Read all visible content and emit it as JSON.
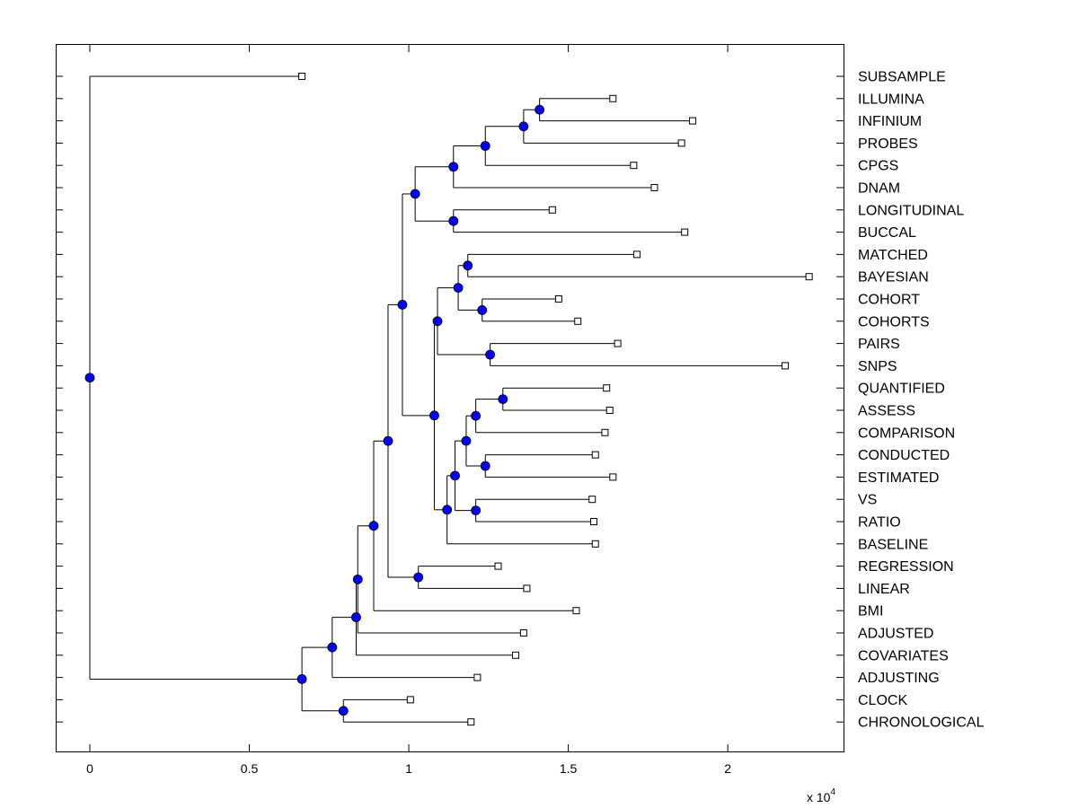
{
  "chart_data": {
    "type": "dendrogram",
    "title": "",
    "xlabel": "",
    "ylabel": "",
    "xlim": [
      -1070,
      23630
    ],
    "x_ticks": [
      {
        "value": 0,
        "label": "0"
      },
      {
        "value": 5000,
        "label": "0.5"
      },
      {
        "value": 10000,
        "label": "1"
      },
      {
        "value": 15000,
        "label": "1.5"
      },
      {
        "value": 20000,
        "label": "2"
      }
    ],
    "x_multiplier": {
      "base": "x 10",
      "exponent": "4"
    },
    "leaves": [
      {
        "label": "SUBSAMPLE",
        "value": 6650
      },
      {
        "label": "ILLUMINA",
        "value": 16400
      },
      {
        "label": "INFINIUM",
        "value": 18900
      },
      {
        "label": "PROBES",
        "value": 18550
      },
      {
        "label": "CPGS",
        "value": 17050
      },
      {
        "label": "DNAM",
        "value": 17700
      },
      {
        "label": "LONGITUDINAL",
        "value": 14500
      },
      {
        "label": "BUCCAL",
        "value": 18650
      },
      {
        "label": "MATCHED",
        "value": 17150
      },
      {
        "label": "BAYESIAN",
        "value": 22550
      },
      {
        "label": "COHORT",
        "value": 14700
      },
      {
        "label": "COHORTS",
        "value": 15300
      },
      {
        "label": "PAIRS",
        "value": 16550
      },
      {
        "label": "SNPS",
        "value": 21800
      },
      {
        "label": "QUANTIFIED",
        "value": 16200
      },
      {
        "label": "ASSESS",
        "value": 16300
      },
      {
        "label": "COMPARISON",
        "value": 16150
      },
      {
        "label": "CONDUCTED",
        "value": 15850
      },
      {
        "label": "ESTIMATED",
        "value": 16400
      },
      {
        "label": "VS",
        "value": 15750
      },
      {
        "label": "RATIO",
        "value": 15800
      },
      {
        "label": "BASELINE",
        "value": 15850
      },
      {
        "label": "REGRESSION",
        "value": 12800
      },
      {
        "label": "LINEAR",
        "value": 13700
      },
      {
        "label": "BMI",
        "value": 15250
      },
      {
        "label": "ADJUSTED",
        "value": 13600
      },
      {
        "label": "COVARIATES",
        "value": 13350
      },
      {
        "label": "ADJUSTING",
        "value": 12150
      },
      {
        "label": "CLOCK",
        "value": 10050
      },
      {
        "label": "CHRONOLOGICAL",
        "value": 11950
      }
    ],
    "nodes": [
      {
        "id": "n1",
        "value": 14100,
        "children": [
          "L1",
          "L2"
        ]
      },
      {
        "id": "n2",
        "value": 13600,
        "children": [
          "n1",
          "L3"
        ]
      },
      {
        "id": "n3",
        "value": 12400,
        "children": [
          "n2",
          "L4"
        ]
      },
      {
        "id": "n4",
        "value": 11400,
        "children": [
          "n3",
          "L5"
        ]
      },
      {
        "id": "n5",
        "value": 11400,
        "children": [
          "L6",
          "L7"
        ]
      },
      {
        "id": "n6",
        "value": 10200,
        "children": [
          "n4",
          "n5"
        ]
      },
      {
        "id": "n7",
        "value": 11850,
        "children": [
          "L8",
          "L9"
        ]
      },
      {
        "id": "n8",
        "value": 12300,
        "children": [
          "L10",
          "L11"
        ]
      },
      {
        "id": "n9",
        "value": 11550,
        "children": [
          "n7",
          "n8"
        ]
      },
      {
        "id": "n10",
        "value": 12550,
        "children": [
          "L12",
          "L13"
        ]
      },
      {
        "id": "n11",
        "value": 10900,
        "children": [
          "n9",
          "n10"
        ]
      },
      {
        "id": "n12",
        "value": 12950,
        "children": [
          "L14",
          "L15"
        ]
      },
      {
        "id": "n13",
        "value": 12100,
        "children": [
          "n12",
          "L16"
        ]
      },
      {
        "id": "n14",
        "value": 12400,
        "children": [
          "L17",
          "L18"
        ]
      },
      {
        "id": "n15",
        "value": 11800,
        "children": [
          "n13",
          "n14"
        ]
      },
      {
        "id": "n16",
        "value": 12100,
        "children": [
          "L19",
          "L20"
        ]
      },
      {
        "id": "n17",
        "value": 11450,
        "children": [
          "n15",
          "n16"
        ]
      },
      {
        "id": "n18",
        "value": 11200,
        "children": [
          "n17",
          "L21"
        ]
      },
      {
        "id": "n19",
        "value": 10800,
        "children": [
          "n11",
          "n18"
        ]
      },
      {
        "id": "n20",
        "value": 9800,
        "children": [
          "n6",
          "n19"
        ]
      },
      {
        "id": "n21",
        "value": 10300,
        "children": [
          "L22",
          "L23"
        ]
      },
      {
        "id": "n22",
        "value": 9350,
        "children": [
          "n20",
          "n21"
        ]
      },
      {
        "id": "n23",
        "value": 8900,
        "children": [
          "n22",
          "L24"
        ]
      },
      {
        "id": "n24",
        "value": 8400,
        "children": [
          "n23",
          "L25"
        ]
      },
      {
        "id": "n25",
        "value": 8350,
        "children": [
          "n24",
          "L26"
        ]
      },
      {
        "id": "n26",
        "value": 7600,
        "children": [
          "n25",
          "L27"
        ]
      },
      {
        "id": "n27",
        "value": 7950,
        "children": [
          "L28",
          "L29"
        ]
      },
      {
        "id": "n28",
        "value": 6650,
        "children": [
          "n26",
          "n27"
        ]
      },
      {
        "id": "n29",
        "value": 0,
        "children": [
          "L0",
          "n28"
        ]
      }
    ],
    "colors": {
      "node_fill": "#0000ff",
      "line": "#000000",
      "leaf_marker_fill": "#ffffff"
    }
  }
}
